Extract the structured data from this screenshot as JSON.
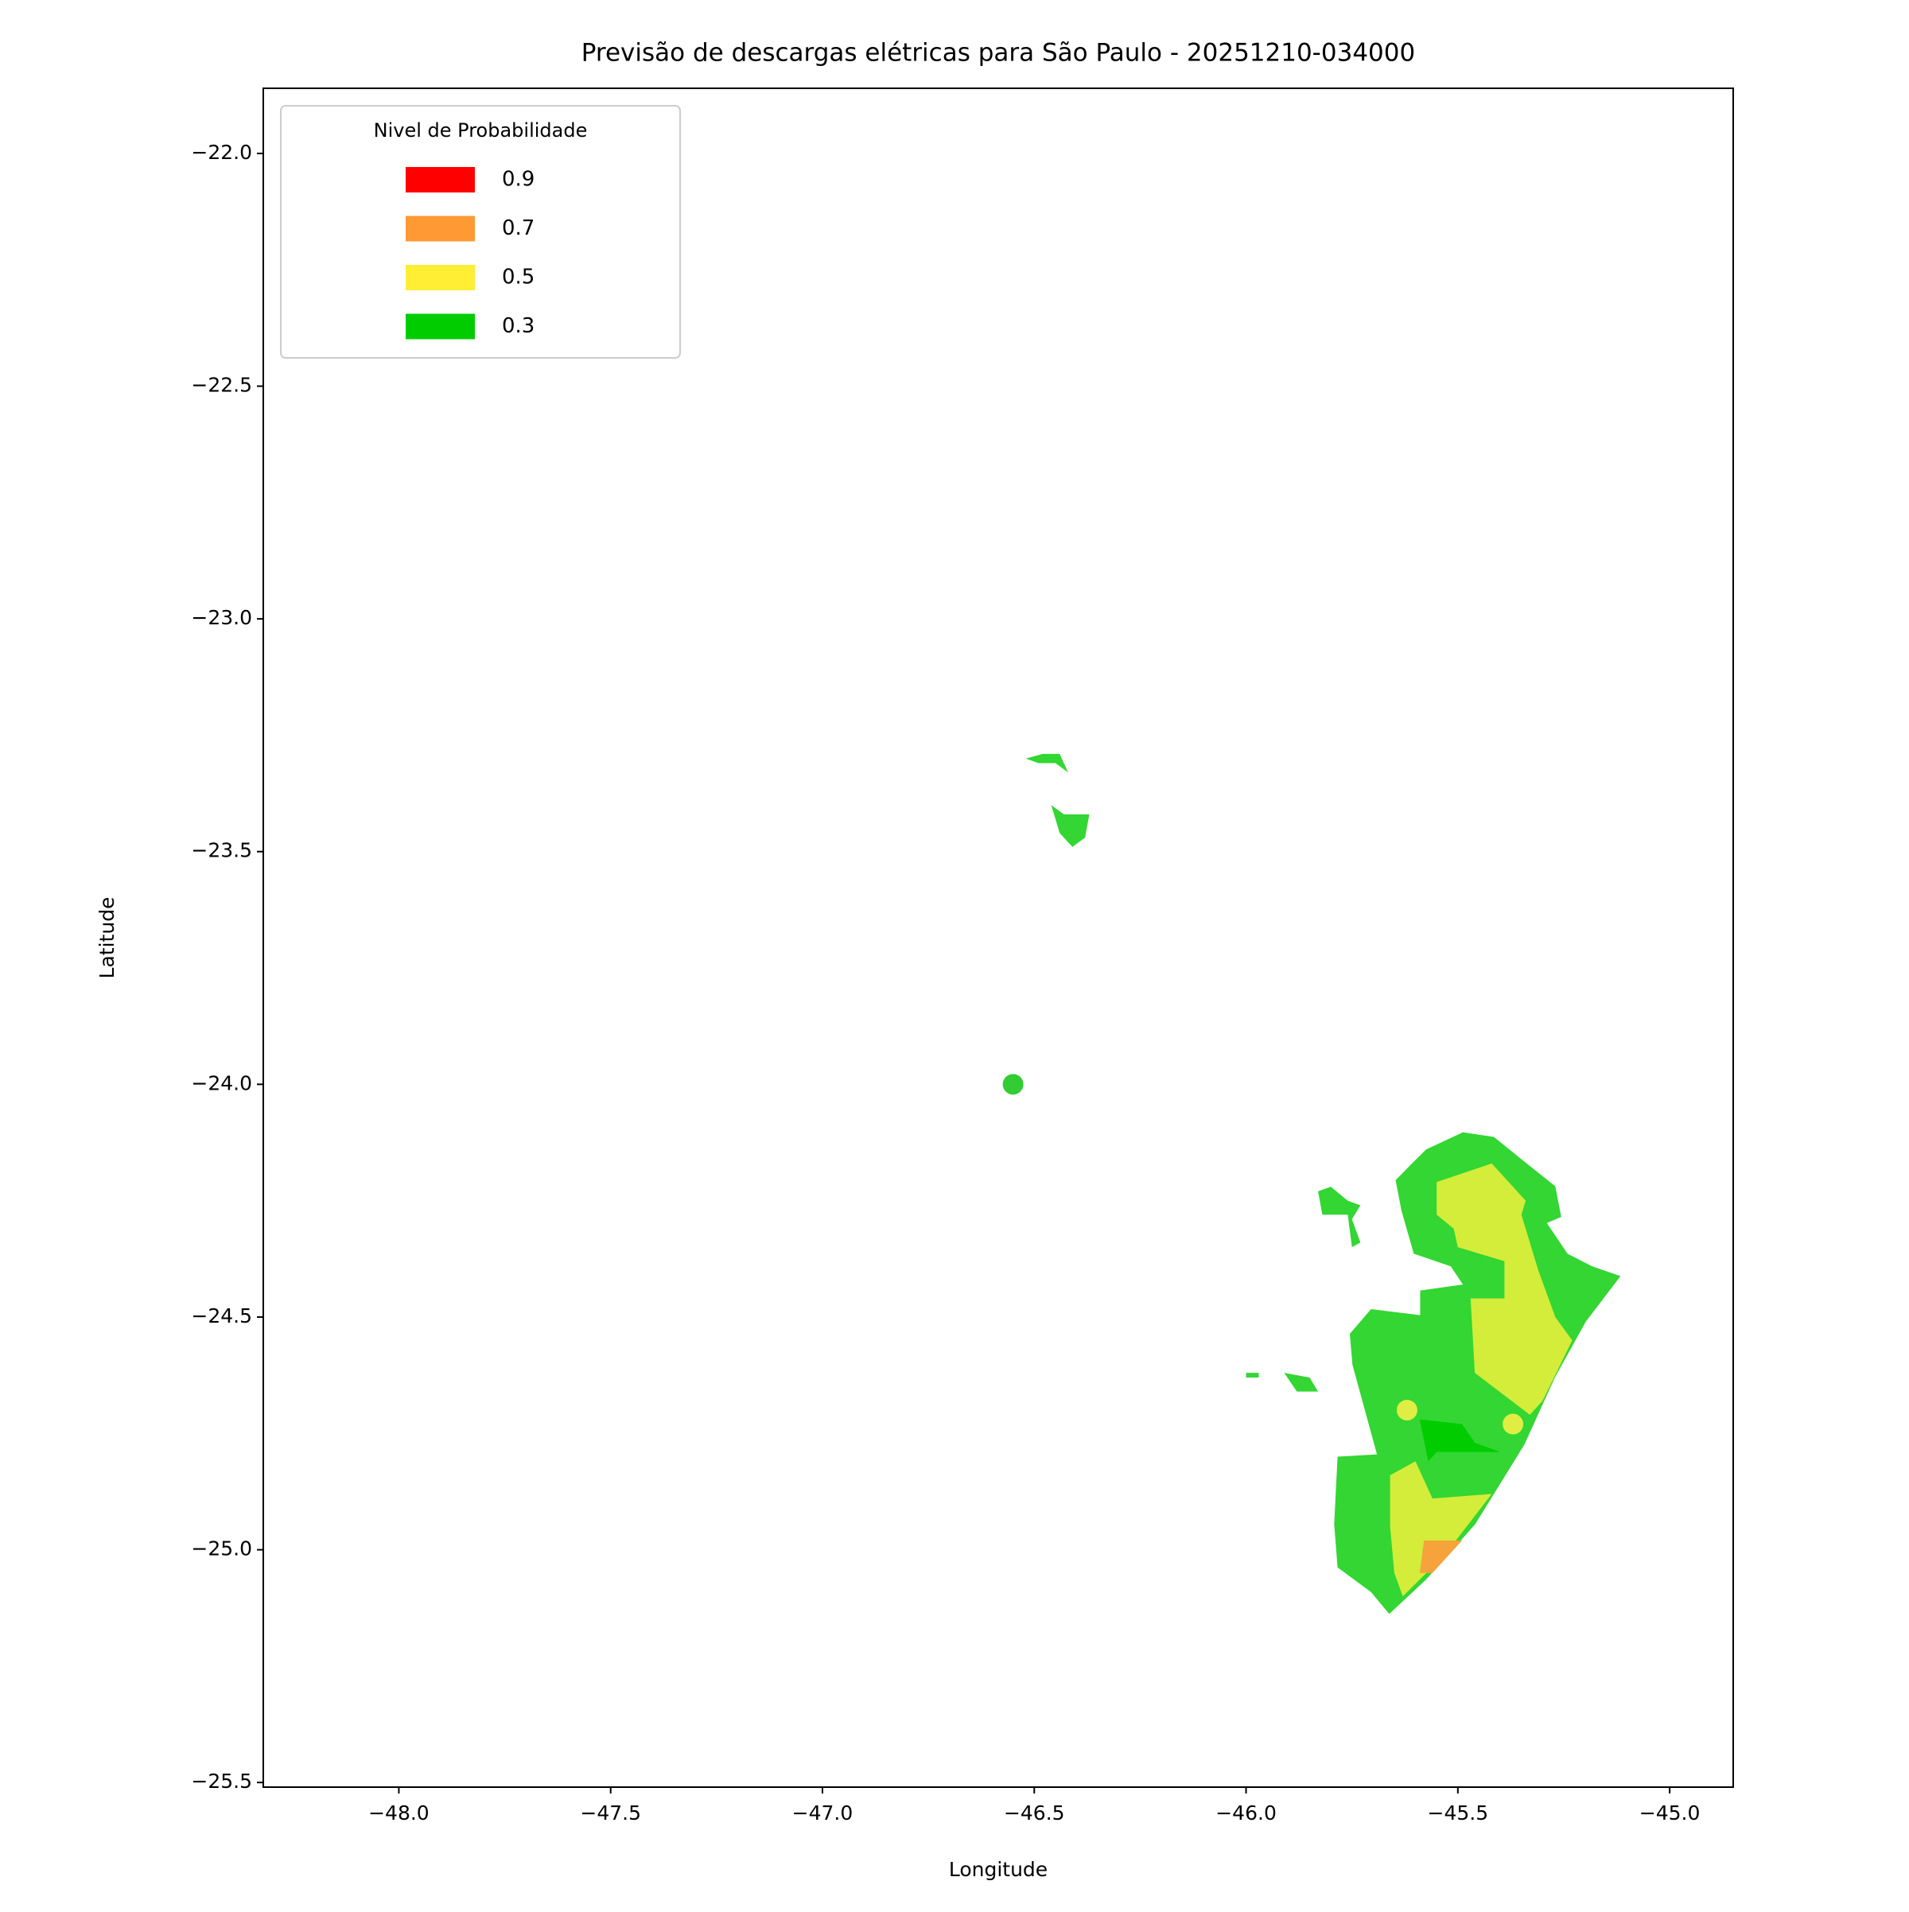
{
  "chart_data": {
    "type": "contour-map",
    "title": "Previsão de descargas elétricas para São Paulo - 20251210-034000",
    "x_label": "Longitude",
    "y_label": "Latitude",
    "xlim": [
      -48.32,
      -44.85
    ],
    "ylim": [
      -25.51,
      -21.86
    ],
    "xticks": [
      {
        "value": -48,
        "label": "−48.0"
      },
      {
        "value": -47.5,
        "label": "−47.5"
      },
      {
        "value": -47,
        "label": "−47.0"
      },
      {
        "value": -46.5,
        "label": "−46.5"
      },
      {
        "value": -46,
        "label": "−46.0"
      },
      {
        "value": -45.5,
        "label": "−45.5"
      },
      {
        "value": -45,
        "label": "−45.0"
      }
    ],
    "yticks": [
      {
        "value": -22,
        "label": "−22.0"
      },
      {
        "value": -22.5,
        "label": "−22.5"
      },
      {
        "value": -23,
        "label": "−23.0"
      },
      {
        "value": -23.5,
        "label": "−23.5"
      },
      {
        "value": -24,
        "label": "−24.0"
      },
      {
        "value": -24.5,
        "label": "−24.5"
      },
      {
        "value": -25,
        "label": "−25.0"
      },
      {
        "value": -25.5,
        "label": "−25.5"
      }
    ],
    "legend": {
      "title": "Nivel de Probabilidade",
      "corner": "upper-left",
      "entries": [
        {
          "label": "0.9",
          "color": "#ff0000"
        },
        {
          "label": "0.7",
          "color": "#ff9933"
        },
        {
          "label": "0.5",
          "color": "#ffee33"
        },
        {
          "label": "0.3",
          "color": "#00cc00"
        }
      ]
    },
    "regions": [
      {
        "color": "#33d633",
        "x": [
          -45.575,
          -45.488,
          -45.415,
          -45.343,
          -45.27,
          -45.256,
          -45.29,
          -45.241,
          -45.183,
          -45.116,
          -45.198,
          -45.27,
          -45.343,
          -45.459,
          -45.575,
          -45.662,
          -45.705,
          -45.784,
          -45.792,
          -45.784,
          -45.691,
          -45.749,
          -45.755,
          -45.705,
          -45.589,
          -45.589,
          -45.488,
          -45.517,
          -45.604,
          -45.633,
          -45.647,
          -45.604
        ],
        "y": [
          -24.14,
          -24.103,
          -24.113,
          -24.166,
          -24.219,
          -24.285,
          -24.298,
          -24.364,
          -24.391,
          -24.412,
          -24.51,
          -24.628,
          -24.774,
          -24.945,
          -25.064,
          -25.138,
          -25.091,
          -25.038,
          -24.945,
          -24.8,
          -24.795,
          -24.602,
          -24.536,
          -24.483,
          -24.496,
          -24.443,
          -24.43,
          -24.391,
          -24.364,
          -24.272,
          -24.206,
          -24.166
        ]
      },
      {
        "color": "#d4ed3a",
        "x": [
          -45.55,
          -45.42,
          -45.34,
          -45.35,
          -45.31,
          -45.27,
          -45.23,
          -45.3,
          -45.33,
          -45.46,
          -45.47,
          -45.39,
          -45.39,
          -45.5,
          -45.51,
          -45.55
        ],
        "y": [
          -24.21,
          -24.17,
          -24.25,
          -24.28,
          -24.4,
          -24.5,
          -24.55,
          -24.68,
          -24.71,
          -24.62,
          -24.46,
          -24.46,
          -24.38,
          -24.35,
          -24.31,
          -24.28
        ]
      },
      {
        "color": "#d4ed3a",
        "x": [
          -45.66,
          -45.6,
          -45.56,
          -45.42,
          -45.53,
          -45.63,
          -45.65,
          -45.66
        ],
        "y": [
          -24.84,
          -24.81,
          -24.89,
          -24.88,
          -25.01,
          -25.1,
          -25.05,
          -24.95
        ]
      },
      {
        "color": "#f5a33a",
        "x": [
          -45.58,
          -45.49,
          -45.56,
          -45.59
        ],
        "y": [
          -24.98,
          -24.98,
          -25.05,
          -25.05
        ]
      },
      {
        "color": "#00cc00",
        "x": [
          -45.59,
          -45.49,
          -45.46,
          -45.4,
          -45.55,
          -45.57
        ],
        "y": [
          -24.72,
          -24.73,
          -24.77,
          -24.79,
          -24.79,
          -24.81
        ]
      },
      {
        "color": "#33d633",
        "x": [
          -46.52,
          -46.48,
          -46.44,
          -46.42,
          -46.45,
          -46.49
        ],
        "y": [
          -23.3,
          -23.29,
          -23.29,
          -23.33,
          -23.31,
          -23.31
        ]
      },
      {
        "color": "#33d633",
        "x": [
          -46.46,
          -46.43,
          -46.37,
          -46.38,
          -46.41,
          -46.44,
          -46.45
        ],
        "y": [
          -23.4,
          -23.42,
          -23.42,
          -23.47,
          -23.49,
          -23.46,
          -23.43
        ]
      },
      {
        "color": "#33d633",
        "x": [
          -45.83,
          -45.8,
          -45.76,
          -45.73,
          -45.75,
          -45.73,
          -45.75,
          -45.76,
          -45.82
        ],
        "y": [
          -24.23,
          -24.22,
          -24.25,
          -24.26,
          -24.29,
          -24.34,
          -24.35,
          -24.28,
          -24.28
        ]
      },
      {
        "color": "#33d633",
        "x": [
          -46,
          -45.97,
          -45.97,
          -46
        ],
        "y": [
          -24.62,
          -24.62,
          -24.63,
          -24.63
        ]
      },
      {
        "color": "#33d633",
        "x": [
          -45.91,
          -45.85,
          -45.83,
          -45.88
        ],
        "y": [
          -24.62,
          -24.63,
          -24.66,
          -24.66
        ]
      }
    ],
    "points": [
      {
        "color": "#33cc33",
        "x": -46.55,
        "y": -24.0
      },
      {
        "color": "#e0ee44",
        "x": -45.62,
        "y": -24.7
      },
      {
        "color": "#e0ee44",
        "x": -45.37,
        "y": -24.73
      }
    ]
  }
}
